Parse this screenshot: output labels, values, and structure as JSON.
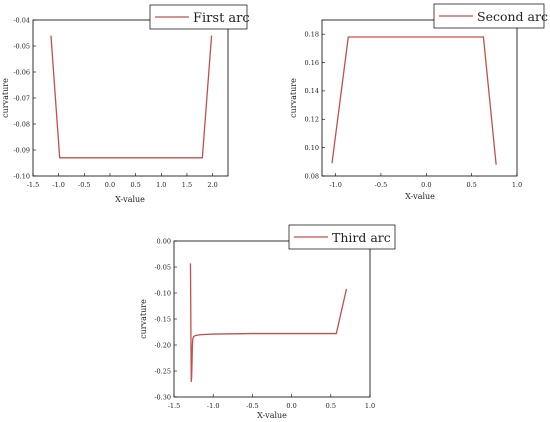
{
  "chart_data": [
    {
      "type": "line",
      "title": "",
      "xlabel": "X-value",
      "ylabel": "curvature",
      "xlim": [
        -1.5,
        2.3
      ],
      "ylim": [
        -0.1,
        -0.04
      ],
      "xticks": [
        -1.5,
        -1.0,
        -0.5,
        0.0,
        0.5,
        1.0,
        1.5,
        2.0
      ],
      "xtick_labels": [
        "-1.5",
        "-1.0",
        "-0.5",
        "0.0",
        "0.5",
        "1.0",
        "1.5",
        "2.0"
      ],
      "yticks": [
        -0.1,
        -0.09,
        -0.08,
        -0.07,
        -0.06,
        -0.05,
        -0.04
      ],
      "ytick_labels": [
        "-0.10",
        "-0.09",
        "-0.08",
        "-0.07",
        "-0.06",
        "-0.05",
        "-0.04"
      ],
      "grid": false,
      "legend_position": "top-right",
      "series": [
        {
          "name": "First arc",
          "color": "#c0504d",
          "x": [
            -1.15,
            -0.98,
            1.8,
            1.98
          ],
          "y": [
            -0.046,
            -0.093,
            -0.093,
            -0.046
          ]
        }
      ]
    },
    {
      "type": "line",
      "title": "",
      "xlabel": "X-value",
      "ylabel": "curvature",
      "xlim": [
        -1.15,
        1.0
      ],
      "ylim": [
        0.08,
        0.19
      ],
      "xticks": [
        -1.0,
        -0.5,
        0.0,
        0.5,
        1.0
      ],
      "xtick_labels": [
        "-1.0",
        "-0.5",
        "0.0",
        "0.5",
        "1.0"
      ],
      "yticks": [
        0.08,
        0.1,
        0.12,
        0.14,
        0.16,
        0.18
      ],
      "ytick_labels": [
        "0.08",
        "0.10",
        "0.12",
        "0.14",
        "0.16",
        "0.18"
      ],
      "grid": false,
      "legend_position": "top-right",
      "series": [
        {
          "name": "Second arc",
          "color": "#c0504d",
          "x": [
            -1.04,
            -0.86,
            0.63,
            0.77
          ],
          "y": [
            0.089,
            0.178,
            0.178,
            0.088
          ]
        }
      ]
    },
    {
      "type": "line",
      "title": "",
      "xlabel": "X-value",
      "ylabel": "curvature",
      "xlim": [
        -1.5,
        1.0
      ],
      "ylim": [
        -0.3,
        0.0
      ],
      "xticks": [
        -1.5,
        -1.0,
        -0.5,
        0.0,
        0.5,
        1.0
      ],
      "xtick_labels": [
        "-1.5",
        "-1.0",
        "-0.5",
        "0.0",
        "0.5",
        "1.0"
      ],
      "yticks": [
        -0.3,
        -0.25,
        -0.2,
        -0.15,
        -0.1,
        -0.05,
        0.0
      ],
      "ytick_labels": [
        "-0.30",
        "-0.25",
        "-0.20",
        "-0.15",
        "-0.10",
        "-0.05",
        "0.00"
      ],
      "grid": false,
      "legend_position": "top-right",
      "series": [
        {
          "name": "Third arc",
          "color": "#c0504d",
          "x": [
            -1.29,
            -1.28,
            -1.275,
            -1.27,
            -1.265,
            -1.26,
            -1.25,
            -1.23,
            -1.2,
            -1.15,
            -1.0,
            -0.5,
            0.0,
            0.57,
            0.7
          ],
          "y": [
            -0.043,
            -0.27,
            -0.262,
            -0.232,
            -0.2,
            -0.188,
            -0.184,
            -0.182,
            -0.181,
            -0.18,
            -0.179,
            -0.178,
            -0.178,
            -0.178,
            -0.092
          ]
        }
      ]
    }
  ]
}
